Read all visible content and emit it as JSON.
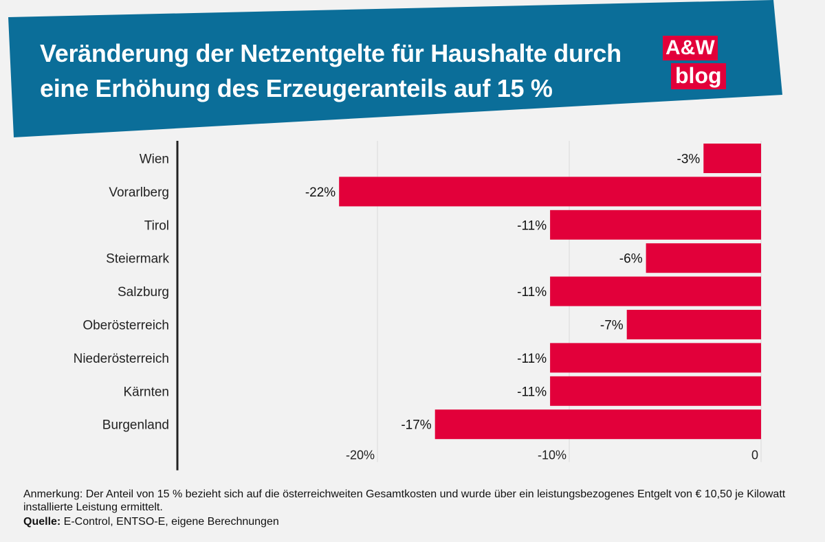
{
  "title": "Veränderung der Netzentgelte für Haushalte durch eine Erhöhung des Erzeugeranteils auf 15 %",
  "logo": {
    "line1": "A&W",
    "line2": "blog"
  },
  "colors": {
    "header": "#0b6e99",
    "bar": "#e2003a",
    "grid": "#d9d9d9",
    "axis": "#222222"
  },
  "chart_data": {
    "type": "bar",
    "orientation": "horizontal",
    "categories": [
      "Wien",
      "Vorarlberg",
      "Tirol",
      "Steiermark",
      "Salzburg",
      "Oberösterreich",
      "Niederösterreich",
      "Kärnten",
      "Burgenland"
    ],
    "values": [
      -3,
      -22,
      -11,
      -6,
      -11,
      -7,
      -11,
      -11,
      -17
    ],
    "value_labels": [
      "-3%",
      "-22%",
      "-11%",
      "-6%",
      "-11%",
      "-7%",
      "-11%",
      "-11%",
      "-17%"
    ],
    "xlim": [
      -30,
      0
    ],
    "xticks": [
      -20,
      -10,
      0
    ],
    "xtick_labels": [
      "-20%",
      "-10%",
      "0"
    ],
    "grid": true,
    "title": "Veränderung der Netzentgelte für Haushalte durch eine Erhöhung des Erzeugeranteils auf 15 %"
  },
  "footer": {
    "note": "Anmerkung: Der Anteil von 15 % bezieht sich auf die österreichweiten Gesamtkosten und wurde über ein leistungsbezogenes Entgelt von € 10,50 je Kilowatt installierte Leistung ermittelt.",
    "source_label": "Quelle:",
    "source_text": " E-Control, ENTSO-E, eigene Berechnungen"
  }
}
